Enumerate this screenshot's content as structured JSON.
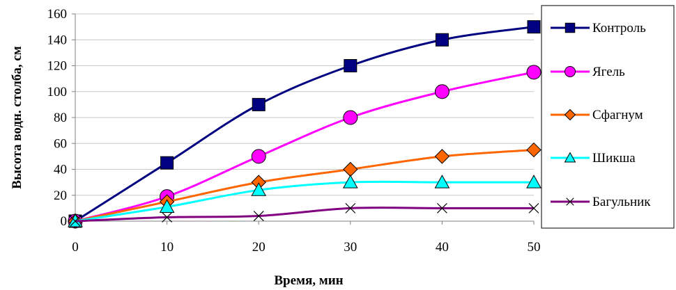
{
  "chart_data": {
    "type": "line",
    "x": [
      0,
      10,
      20,
      30,
      40,
      50
    ],
    "xlabel": "Время, мин",
    "ylabel": "Высота водн. столба, см",
    "xlim": [
      0,
      50
    ],
    "ylim": [
      0,
      160
    ],
    "x_ticks": [
      0,
      10,
      20,
      30,
      40,
      50
    ],
    "y_ticks": [
      0,
      20,
      40,
      60,
      80,
      100,
      120,
      140,
      160
    ],
    "grid": "horizontal",
    "legend_position": "right",
    "series": [
      {
        "name": "Контроль",
        "values": [
          0,
          45,
          90,
          120,
          140,
          150
        ],
        "color": "#000080",
        "marker": "square"
      },
      {
        "name": "Ягель",
        "values": [
          0,
          19,
          50,
          80,
          100,
          115
        ],
        "color": "#FF00FF",
        "marker": "circle"
      },
      {
        "name": "Сфагнум",
        "values": [
          0,
          15,
          30,
          40,
          50,
          55
        ],
        "color": "#FF6600",
        "marker": "diamond"
      },
      {
        "name": "Шикша",
        "values": [
          0,
          11,
          24,
          30,
          30,
          30
        ],
        "color": "#00FFFF",
        "marker": "triangle"
      },
      {
        "name": "Багульник",
        "values": [
          0,
          3,
          4,
          10,
          10,
          10
        ],
        "color": "#800080",
        "marker": "x"
      }
    ]
  }
}
